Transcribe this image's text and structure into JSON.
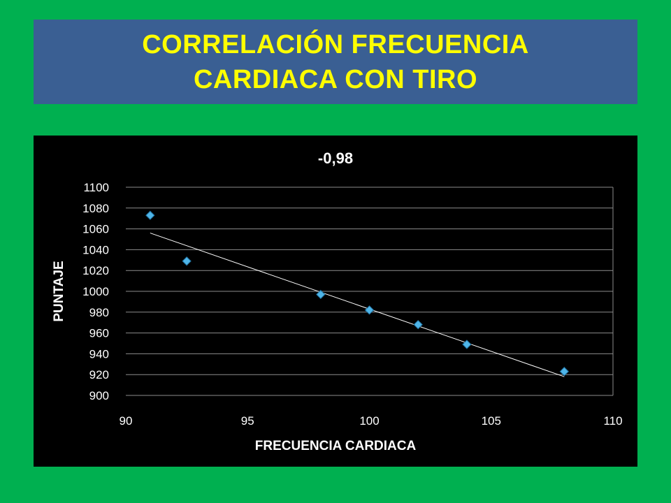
{
  "slide": {
    "title_line1": "CORRELACIÓN FRECUENCIA",
    "title_line2": "CARDIACA CON TIRO"
  },
  "colors": {
    "background": "#00B050",
    "title_box": "#3A5F93",
    "title_text": "#FFFF00",
    "chart_background": "#000000",
    "marker": "#4FB5E8",
    "trendline": "#FFFFFF"
  },
  "chart_data": {
    "type": "scatter",
    "title": "-0,98",
    "xlabel": "FRECUENCIA CARDIACA",
    "ylabel": "PUNTAJE",
    "xlim": [
      90,
      110
    ],
    "ylim": [
      900,
      1100
    ],
    "xticks": [
      90,
      95,
      100,
      105,
      110
    ],
    "yticks": [
      900,
      920,
      940,
      960,
      980,
      1000,
      1020,
      1040,
      1060,
      1080,
      1100
    ],
    "grid": true,
    "legend": "none",
    "series": [
      {
        "x": [
          91,
          92.5,
          98,
          100,
          102,
          104,
          108
        ],
        "y": [
          1073,
          1029,
          997,
          982,
          968,
          949,
          923
        ]
      }
    ],
    "trendline": {
      "type": "linear",
      "x": [
        91,
        108
      ],
      "y": [
        1056,
        918
      ]
    }
  }
}
